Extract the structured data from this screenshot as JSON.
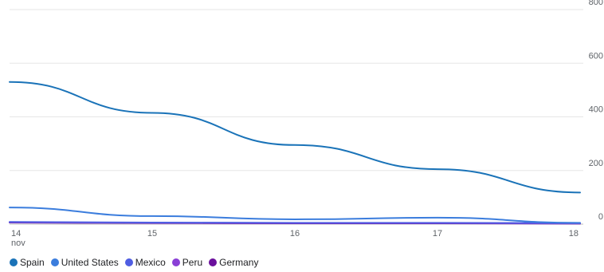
{
  "chart_data": {
    "type": "line",
    "title": "",
    "xlabel": "",
    "ylabel": "",
    "x": [
      "14",
      "15",
      "16",
      "17",
      "18"
    ],
    "x_sublabel": "nov",
    "y_ticks": [
      "0",
      "200",
      "400",
      "600",
      "800"
    ],
    "ylim": [
      0,
      800
    ],
    "grid": true,
    "legend_position": "bottom-left",
    "series": [
      {
        "name": "Spain",
        "color": "#1a73b8",
        "values": [
          530,
          415,
          295,
          205,
          118
        ]
      },
      {
        "name": "United States",
        "color": "#3b7ddd",
        "values": [
          62,
          30,
          18,
          24,
          5
        ]
      },
      {
        "name": "Mexico",
        "color": "#4f5de2",
        "values": [
          8,
          6,
          5,
          5,
          4
        ]
      },
      {
        "name": "Peru",
        "color": "#8a3fd6",
        "values": [
          7,
          5,
          4,
          4,
          3
        ]
      },
      {
        "name": "Germany",
        "color": "#6a0f9c",
        "values": [
          6,
          4,
          3,
          3,
          2
        ]
      }
    ]
  }
}
